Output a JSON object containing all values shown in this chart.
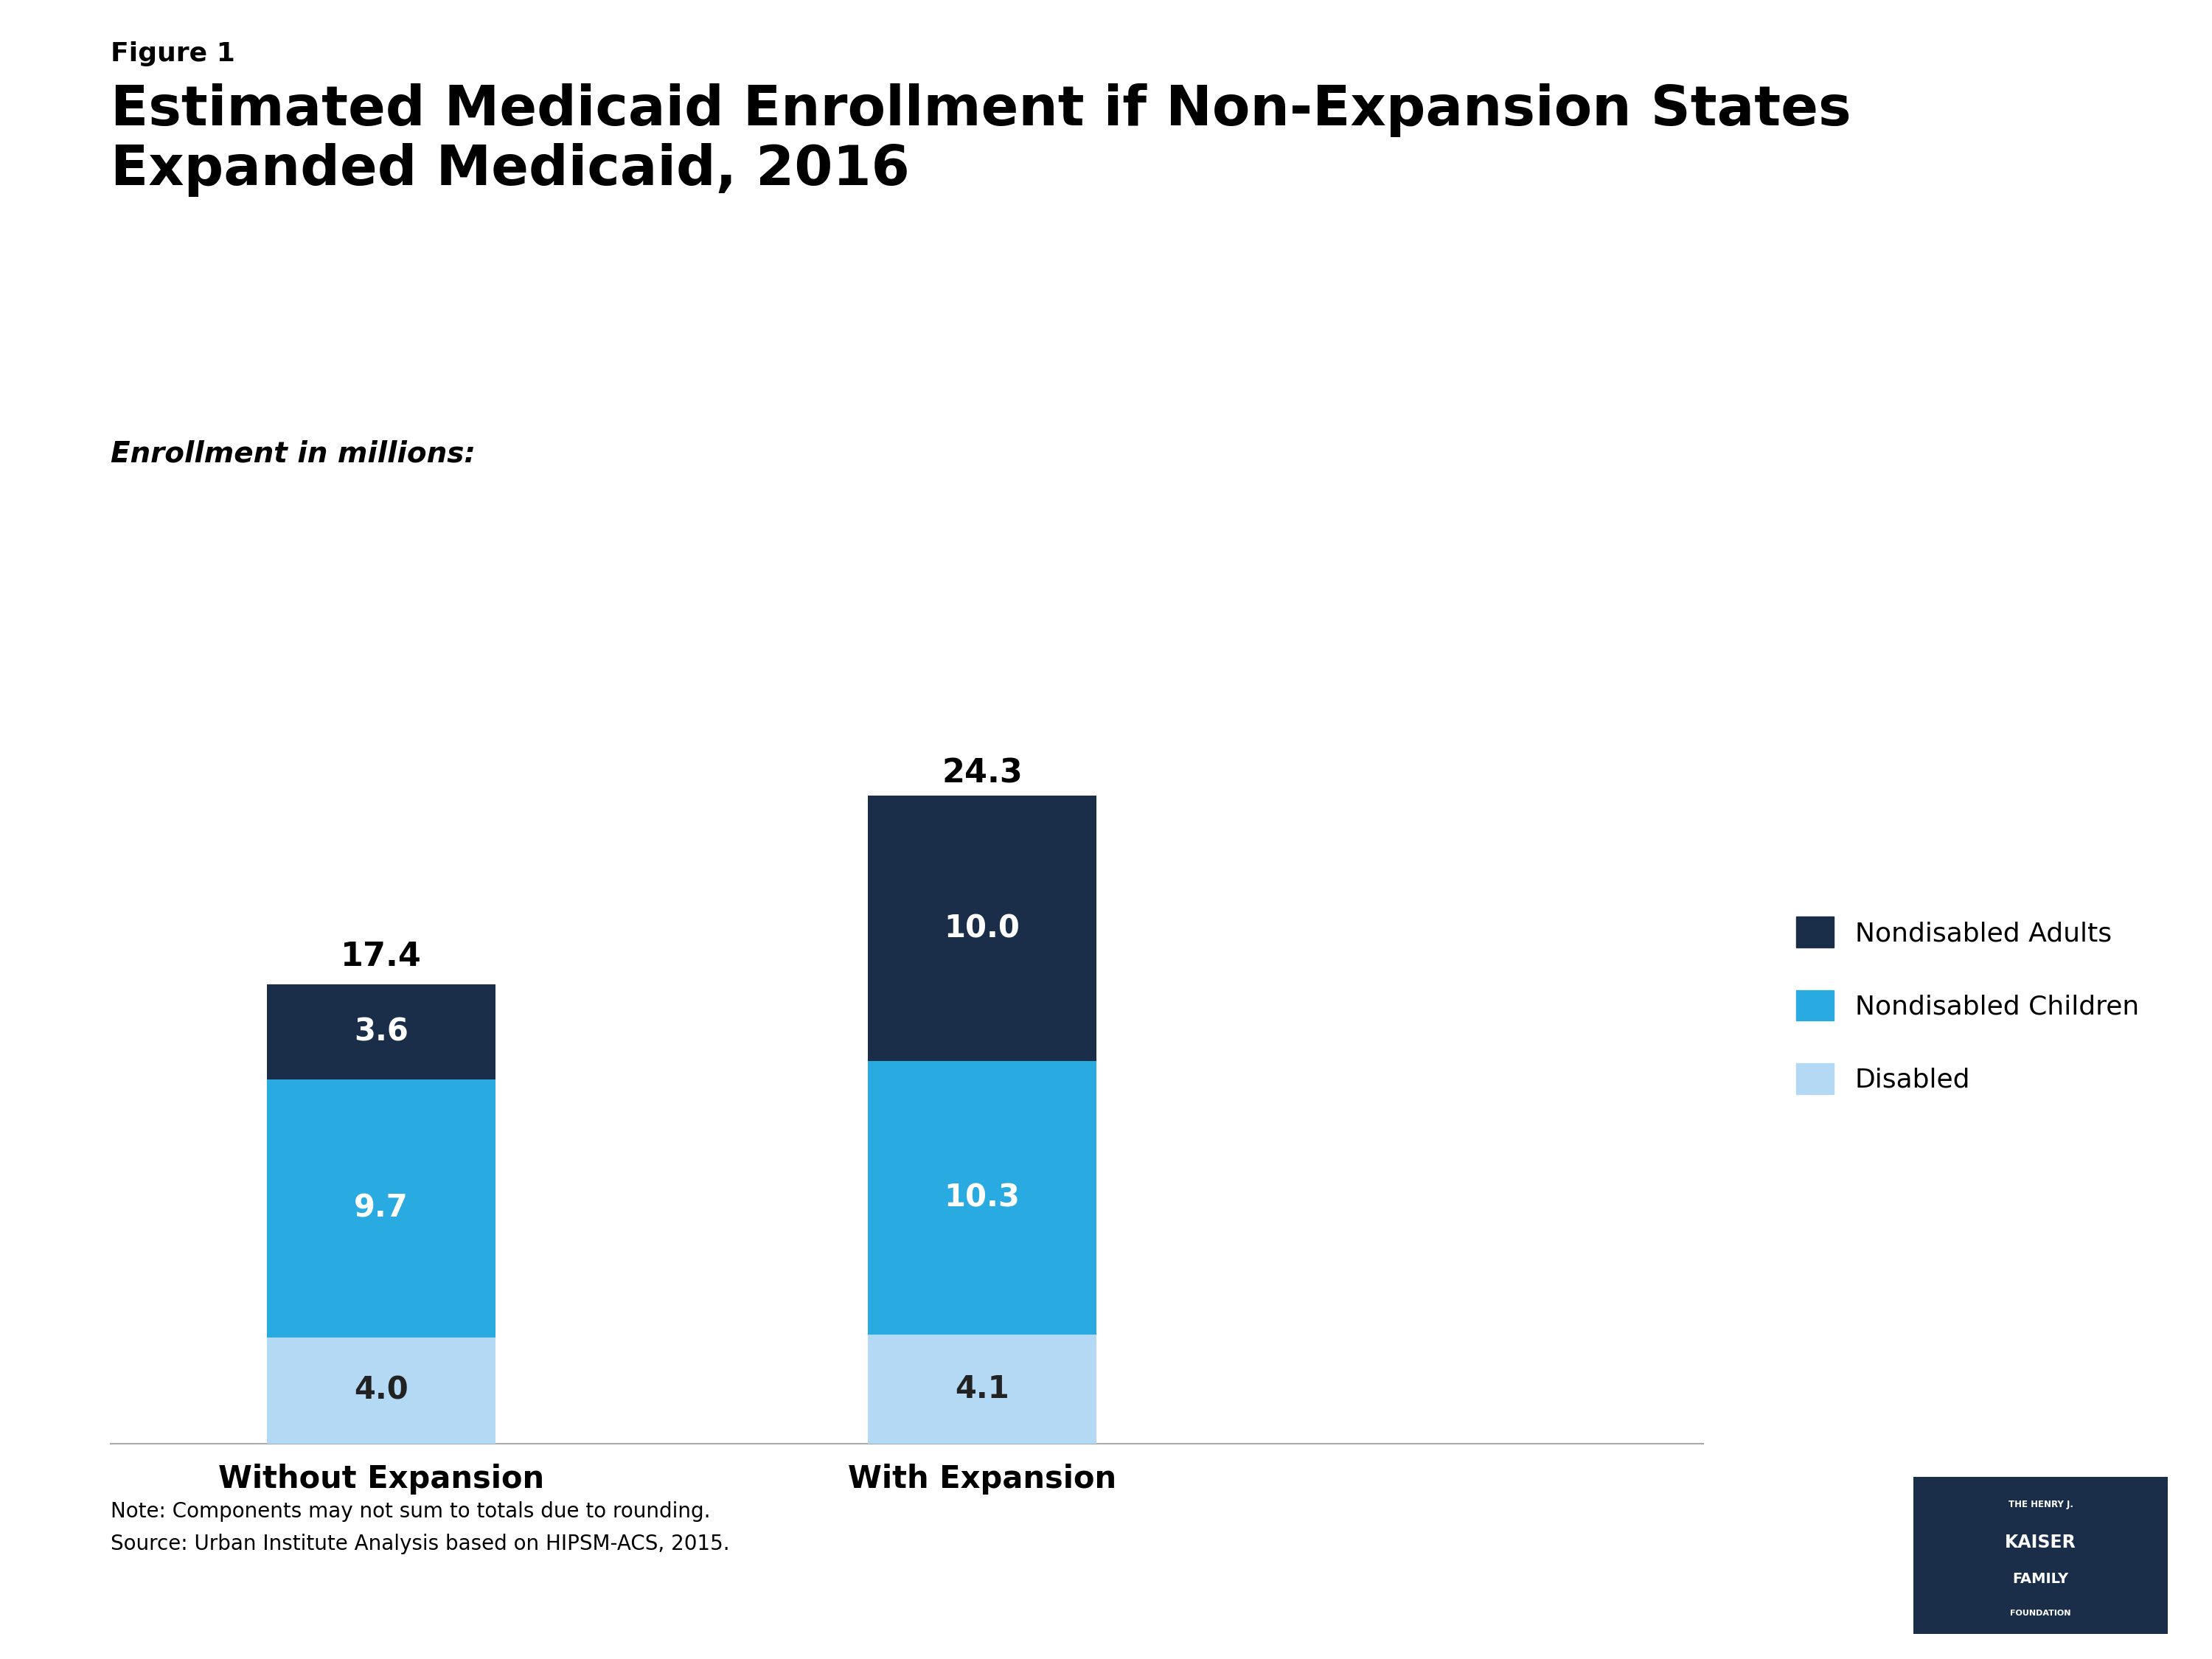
{
  "figure_label": "Figure 1",
  "title_line1": "Estimated Medicaid Enrollment if Non-Expansion States",
  "title_line2": "Expanded Medicaid, 2016",
  "subtitle": "Enrollment in millions:",
  "categories": [
    "Without Expansion",
    "With Expansion"
  ],
  "disabled": [
    4.0,
    4.1
  ],
  "nondisabled_children": [
    9.7,
    10.3
  ],
  "nondisabled_adults": [
    3.6,
    10.0
  ],
  "totals": [
    17.4,
    24.3
  ],
  "color_disabled": "#b3d9f5",
  "color_children": "#29abe2",
  "color_adults": "#1a2e4a",
  "bar_width": 0.38,
  "ylim": [
    0,
    30
  ],
  "legend_labels": [
    "Nondisabled Adults",
    "Nondisabled Children",
    "Disabled"
  ],
  "note_line1": "Note: Components may not sum to totals due to rounding.",
  "note_line2": "Source: Urban Institute Analysis based on HIPSM-ACS, 2015.",
  "background_color": "#ffffff",
  "text_color": "#000000",
  "title_fontsize": 54,
  "figure_label_fontsize": 26,
  "subtitle_fontsize": 28,
  "bar_label_fontsize": 30,
  "xtick_fontsize": 30,
  "legend_fontsize": 26,
  "note_fontsize": 20,
  "total_label_fontsize": 32
}
